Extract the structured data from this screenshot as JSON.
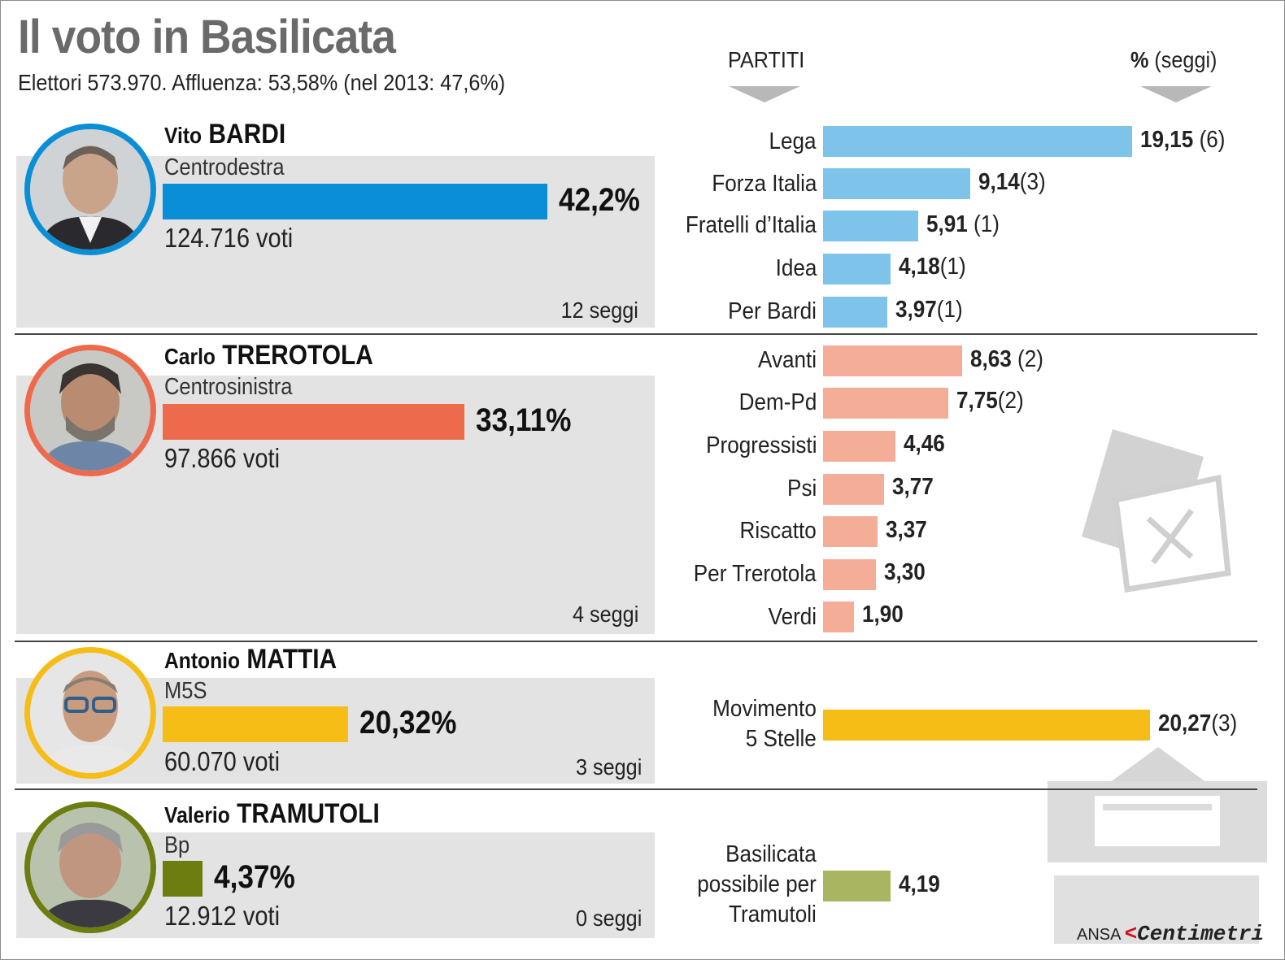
{
  "header": {
    "title": "Il voto in Basilicata",
    "subtitle": "Elettori 573.970.  Affluenza: 53,58% (nel 2013: 47,6%)",
    "col_partiti": "PARTITI",
    "col_pct_bold": "%",
    "col_pct_rest": " (seggi)"
  },
  "candidates": [
    {
      "first": "Vito",
      "last": "BARDI",
      "coalition": "Centrodestra",
      "pct_label": "42,2%",
      "voti": "124.716 voti",
      "seggi": "12 seggi"
    },
    {
      "first": "Carlo",
      "last": "TREROTOLA",
      "coalition": "Centrosinistra",
      "pct_label": "33,11%",
      "voti": "97.866 voti",
      "seggi": "4 seggi"
    },
    {
      "first": "Antonio",
      "last": "MATTIA",
      "coalition": "M5S",
      "pct_label": "20,32%",
      "voti": "60.070 voti",
      "seggi": "3 seggi"
    },
    {
      "first": "Valerio",
      "last": "TRAMUTOLI",
      "coalition": "Bp",
      "pct_label": "4,37%",
      "voti": "12.912 voti",
      "seggi": "0 seggi"
    }
  ],
  "parties": [
    {
      "name": "Lega",
      "val_label": "19,15",
      "seats_label": " (6)"
    },
    {
      "name": "Forza Italia",
      "val_label": "9,14",
      "seats_label": "(3)"
    },
    {
      "name": "Fratelli d’Italia",
      "val_label": "5,91",
      "seats_label": " (1)"
    },
    {
      "name": "Idea",
      "val_label": "4,18",
      "seats_label": "(1)"
    },
    {
      "name": "Per Bardi",
      "val_label": "3,97",
      "seats_label": "(1)"
    },
    {
      "name": "Avanti",
      "val_label": "8,63",
      "seats_label": " (2)"
    },
    {
      "name": "Dem-Pd",
      "val_label": "7,75",
      "seats_label": "(2)"
    },
    {
      "name": "Progressisti",
      "val_label": "4,46",
      "seats_label": ""
    },
    {
      "name": "Psi",
      "val_label": "3,77",
      "seats_label": ""
    },
    {
      "name": "Riscatto",
      "val_label": "3,37",
      "seats_label": ""
    },
    {
      "name": "Per Trerotola",
      "val_label": "3,30",
      "seats_label": ""
    },
    {
      "name": "Verdi",
      "val_label": "1,90",
      "seats_label": ""
    },
    {
      "name": "Movimento",
      "name2": "5 Stelle",
      "val_label": "20,27",
      "seats_label": "(3)"
    },
    {
      "name": "Basilicata",
      "name2": "possibile per",
      "name3": "Tramutoli",
      "val_label": "4,19",
      "seats_label": ""
    }
  ],
  "credit": {
    "ansa": "ANSA",
    "brand_mark": "<",
    "brand": "Centimetri"
  },
  "colors": {
    "cdx": "#0a8fd6",
    "cdx_light": "#7ec3ea",
    "csx": "#ee6a4c",
    "csx_light": "#f4ae98",
    "m5s": "#f6bd16",
    "bp": "#6d7d10",
    "bp_light": "#a9b561"
  },
  "chart_data": {
    "type": "bar",
    "title": "Il voto in Basilicata",
    "candidates": {
      "categories": [
        "Vito BARDI",
        "Carlo TREROTOLA",
        "Antonio MATTIA",
        "Valerio TRAMUTOLI"
      ],
      "values": [
        42.2,
        33.11,
        20.32,
        4.37
      ],
      "votes": [
        124716,
        97866,
        60070,
        12912
      ],
      "seats": [
        12,
        4,
        3,
        0
      ],
      "unit": "%"
    },
    "parties": {
      "categories": [
        "Lega",
        "Forza Italia",
        "Fratelli d’Italia",
        "Idea",
        "Per Bardi",
        "Avanti",
        "Dem-Pd",
        "Progressisti",
        "Psi",
        "Riscatto",
        "Per Trerotola",
        "Verdi",
        "Movimento 5 Stelle",
        "Basilicata possibile per Tramutoli"
      ],
      "values": [
        19.15,
        9.14,
        5.91,
        4.18,
        3.97,
        8.63,
        7.75,
        4.46,
        3.77,
        3.37,
        3.3,
        1.9,
        20.27,
        4.19
      ],
      "seats": [
        6,
        3,
        1,
        1,
        1,
        2,
        2,
        null,
        null,
        null,
        null,
        null,
        3,
        null
      ],
      "unit": "%"
    }
  }
}
